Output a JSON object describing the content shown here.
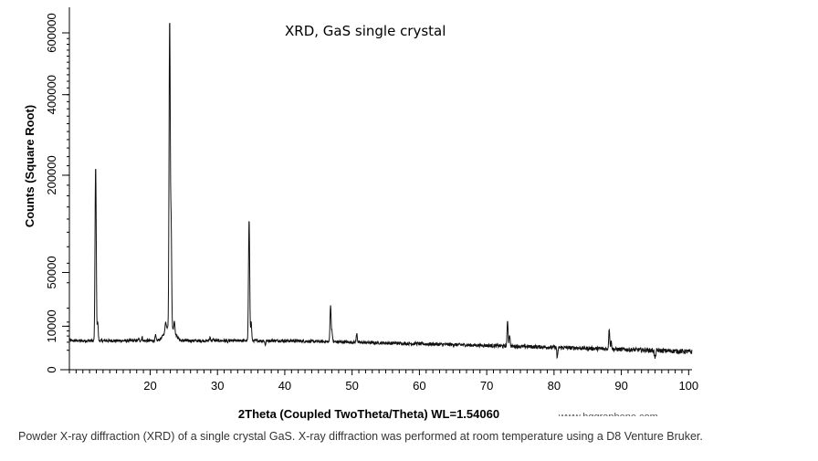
{
  "chart_data": {
    "type": "line",
    "title": "XRD, GaS single crystal",
    "xlabel": "2Theta (Coupled TwoTheta/Theta) WL=1.54060",
    "ylabel": "Counts (Square Root)",
    "xlim": [
      8,
      100.5
    ],
    "x_ticks": [
      20,
      30,
      40,
      50,
      60,
      70,
      80,
      90,
      100
    ],
    "y_ticks": [
      0,
      10000,
      50000,
      200000,
      400000,
      600000
    ],
    "y_scale": "square root",
    "series": [
      {
        "baseline": 4000,
        "peaks": [
          {
            "x": 11.9,
            "y": 220000
          },
          {
            "x": 12.2,
            "y": 12000
          },
          {
            "x": 18.3,
            "y": 4500
          },
          {
            "x": 18.8,
            "y": 5200
          },
          {
            "x": 20.8,
            "y": 5800
          },
          {
            "x": 22.3,
            "y": 8000
          },
          {
            "x": 22.9,
            "y": 650000
          },
          {
            "x": 23.1,
            "y": 120000
          },
          {
            "x": 23.6,
            "y": 9000
          },
          {
            "x": 28.9,
            "y": 5200
          },
          {
            "x": 29.4,
            "y": 4500
          },
          {
            "x": 31.5,
            "y": 3500
          },
          {
            "x": 33.4,
            "y": 4200
          },
          {
            "x": 34.7,
            "y": 120000
          },
          {
            "x": 35.0,
            "y": 12000
          },
          {
            "x": 37.1,
            "y": 2800
          },
          {
            "x": 41.1,
            "y": 4000
          },
          {
            "x": 46.8,
            "y": 22000
          },
          {
            "x": 47.0,
            "y": 8000
          },
          {
            "x": 50.7,
            "y": 7200
          },
          {
            "x": 59.5,
            "y": 4200
          },
          {
            "x": 73.1,
            "y": 13500
          },
          {
            "x": 73.4,
            "y": 7500
          },
          {
            "x": 80.5,
            "y": 1600
          },
          {
            "x": 88.2,
            "y": 10500
          },
          {
            "x": 88.5,
            "y": 6000
          },
          {
            "x": 95.0,
            "y": 1200
          }
        ]
      }
    ],
    "watermark": "www.hqgraphene.com"
  },
  "caption": "Powder X-ray diffraction (XRD) of a single crystal GaS. X-ray diffraction was performed at room temperature using a D8 Venture Bruker."
}
